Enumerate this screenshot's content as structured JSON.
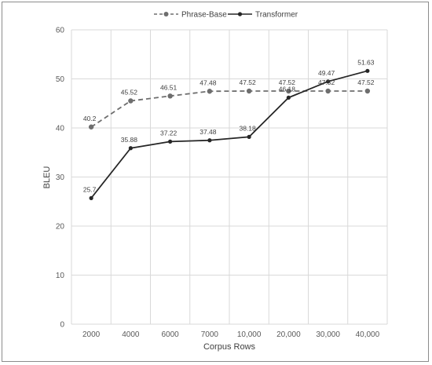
{
  "chart_data": {
    "type": "line",
    "title": "",
    "xlabel": "Corpus Rows",
    "ylabel": "BLEU",
    "categories": [
      "2000",
      "4000",
      "6000",
      "7000",
      "10,000",
      "20,000",
      "30,000",
      "40,000"
    ],
    "ylim": [
      0,
      60
    ],
    "yticks": [
      "0",
      "10",
      "20",
      "30",
      "40",
      "50",
      "60"
    ],
    "grid": true,
    "legend_position": "top-center",
    "series": [
      {
        "name": "Phrase-Base",
        "values": [
          40.2,
          45.52,
          46.51,
          47.48,
          47.52,
          47.52,
          47.52,
          47.52
        ],
        "labels": [
          "40.2",
          "45.52",
          "46.51",
          "47.48",
          "47.52",
          "47.52",
          "47.52",
          "47.52"
        ],
        "style": "dashed",
        "color": "#6e6e6e"
      },
      {
        "name": "Transformer",
        "values": [
          25.7,
          35.88,
          37.22,
          37.48,
          38.18,
          46.18,
          49.47,
          51.63
        ],
        "labels": [
          "25.7",
          "35.88",
          "37.22",
          "37.48",
          "38.18",
          "46.18",
          "49.47",
          "51.63"
        ],
        "style": "solid",
        "color": "#262626"
      }
    ]
  }
}
